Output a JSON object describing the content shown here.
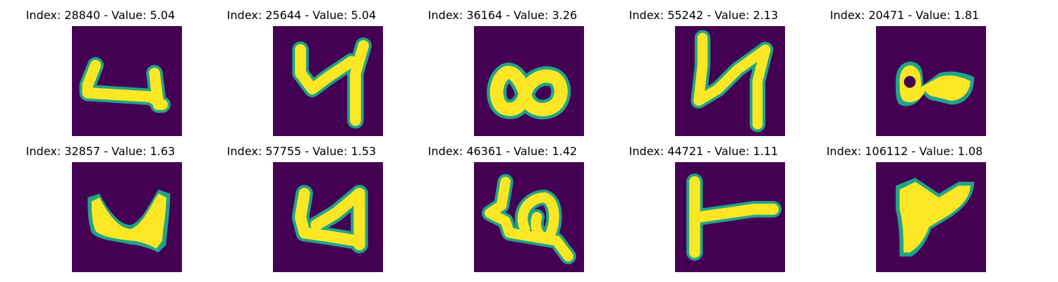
{
  "panels": [
    {
      "title": "Index: 28840 - Value: 5.04",
      "index": 28840,
      "value": 5.04,
      "glyph": "digit-glyph"
    },
    {
      "title": "Index: 25644 - Value: 5.04",
      "index": 25644,
      "value": 5.04,
      "glyph": "digit-glyph"
    },
    {
      "title": "Index: 36164 - Value: 3.26",
      "index": 36164,
      "value": 3.26,
      "glyph": "digit-glyph"
    },
    {
      "title": "Index: 55242 - Value: 2.13",
      "index": 55242,
      "value": 2.13,
      "glyph": "digit-glyph"
    },
    {
      "title": "Index: 20471 - Value: 1.81",
      "index": 20471,
      "value": 1.81,
      "glyph": "digit-glyph"
    },
    {
      "title": "Index: 32857 - Value: 1.63",
      "index": 32857,
      "value": 1.63,
      "glyph": "digit-glyph"
    },
    {
      "title": "Index: 57755 - Value: 1.53",
      "index": 57755,
      "value": 1.53,
      "glyph": "digit-glyph"
    },
    {
      "title": "Index: 46361 - Value: 1.42",
      "index": 46361,
      "value": 1.42,
      "glyph": "digit-glyph"
    },
    {
      "title": "Index: 44721 - Value: 1.11",
      "index": 44721,
      "value": 1.11,
      "glyph": "digit-glyph"
    },
    {
      "title": "Index: 106112 - Value: 1.08",
      "index": 106112,
      "value": 1.08,
      "glyph": "digit-glyph"
    }
  ],
  "colors": {
    "background": "#440154",
    "stroke_edge": "#21a38a",
    "stroke_core": "#fde725"
  }
}
